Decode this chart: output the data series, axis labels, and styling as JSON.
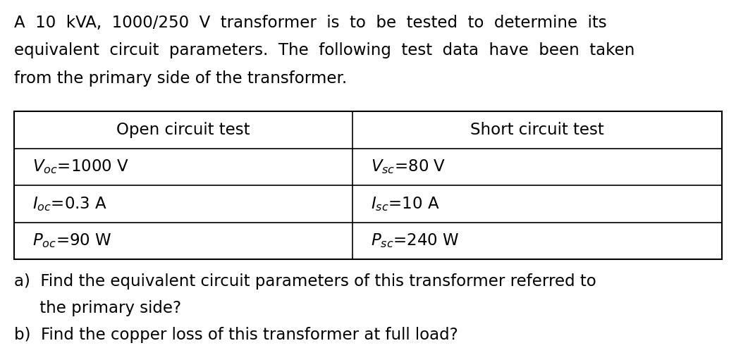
{
  "intro_lines": [
    "A  10  kVA,  1000/250  V  transformer  is  to  be  tested  to  determine  its",
    "equivalent  circuit  parameters.  The  following  test  data  have  been  taken",
    "from the primary side of the transformer."
  ],
  "table": {
    "col1_header": "Open circuit test",
    "col2_header": "Short circuit test",
    "col1_rows": [
      "$V_{oc}$=1000 V",
      "$I_{oc}$=0.3 A",
      "$P_{oc}$=90 W"
    ],
    "col2_rows": [
      "$V_{sc}$=80 V",
      "$I_{sc}$=10 A",
      "$P_{sc}$=240 W"
    ]
  },
  "question_a_line1": "a)  Find the equivalent circuit parameters of this transformer referred to",
  "question_a_line2": "     the primary side?",
  "question_b": "b)  Find the copper loss of this transformer at full load?",
  "bg_color": "#ffffff",
  "text_color": "#000000",
  "font_size": 16.5,
  "table_font_size": 16.5
}
